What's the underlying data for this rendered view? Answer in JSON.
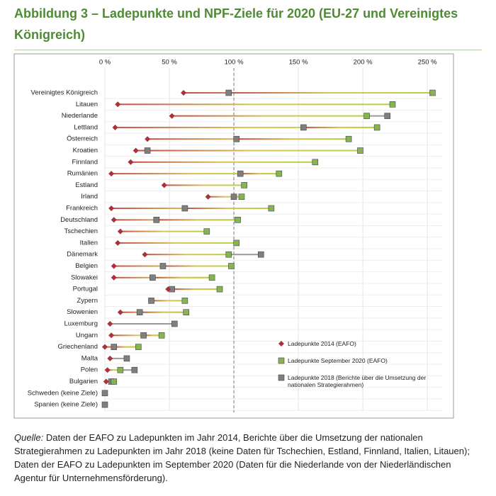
{
  "chart_data": {
    "type": "dumbbell",
    "title": "Abbildung 3 – Ladepunkte und NPF-Ziele für 2020 (EU-27 und Vereinigtes Königreich)",
    "categories": [
      "Vereinigtes Königreich",
      "Litauen",
      "Niederlande",
      "Lettland",
      "Österreich",
      "Kroatien",
      "Finnland",
      "Rumänien",
      "Estland",
      "Irland",
      "Frankreich",
      "Deutschland",
      "Tschechien",
      "Italien",
      "Dänemark",
      "Belgien",
      "Slowakei",
      "Portugal",
      "Zypern",
      "Slowenien",
      "Luxemburg",
      "Ungarn",
      "Griechenland",
      "Malta",
      "Polen",
      "Bulgarien",
      "Schweden (keine Ziele)",
      "Spanien (keine Ziele)"
    ],
    "series": [
      {
        "name": "Ladepunkte 2014 (EAFO)",
        "color": "#a8323a",
        "marker": "diamond",
        "values": [
          61,
          10,
          52,
          8,
          33,
          24,
          20,
          5,
          46,
          80,
          5,
          7,
          12,
          10,
          31,
          7,
          7,
          49,
          null,
          12,
          4,
          5,
          0,
          4,
          2,
          1,
          null,
          null
        ]
      },
      {
        "name": "Ladepunkte September 2020 (EAFO)",
        "color": "#86b454",
        "marker": "square",
        "values": [
          254,
          223,
          203,
          211,
          189,
          198,
          163,
          135,
          108,
          106,
          129,
          103,
          79,
          102,
          96,
          98,
          83,
          89,
          62,
          63,
          null,
          44,
          26,
          null,
          12,
          7,
          null,
          null
        ]
      },
      {
        "name": "Ladepunkte 2018 (Berichte über die Umsetzung der nationalen Strategierahmen)",
        "color": "#7f7f7f",
        "marker": "square",
        "values": [
          96,
          null,
          219,
          154,
          102,
          33,
          null,
          105,
          null,
          100,
          62,
          40,
          null,
          null,
          121,
          45,
          37,
          52,
          36,
          27,
          54,
          30,
          7,
          17,
          23,
          5,
          0,
          0
        ]
      }
    ],
    "xlim": [
      0,
      262
    ],
    "xticks": [
      {
        "value": 0,
        "label": "0 %"
      },
      {
        "value": 50,
        "label": "50 %"
      },
      {
        "value": 100,
        "label": "100 %"
      },
      {
        "value": 150,
        "label": "150 %"
      },
      {
        "value": 200,
        "label": "200 %"
      },
      {
        "value": 250,
        "label": "250 %"
      }
    ],
    "reference_line": 100,
    "grid": true
  },
  "footer": {
    "label": "Quelle:",
    "text": "Daten der EAFO zu Ladepunkten im Jahr 2014, Berichte über die Umsetzung der nationalen Strategierahmen zu Ladepunkten im Jahr 2018 (keine Daten für Tschechien, Estland, Finnland, Italien, Litauen); Daten der EAFO zu Ladepunkten im September 2020 (Daten für die Niederlande von der Niederländischen Agentur für Unternehmensförderung)."
  }
}
